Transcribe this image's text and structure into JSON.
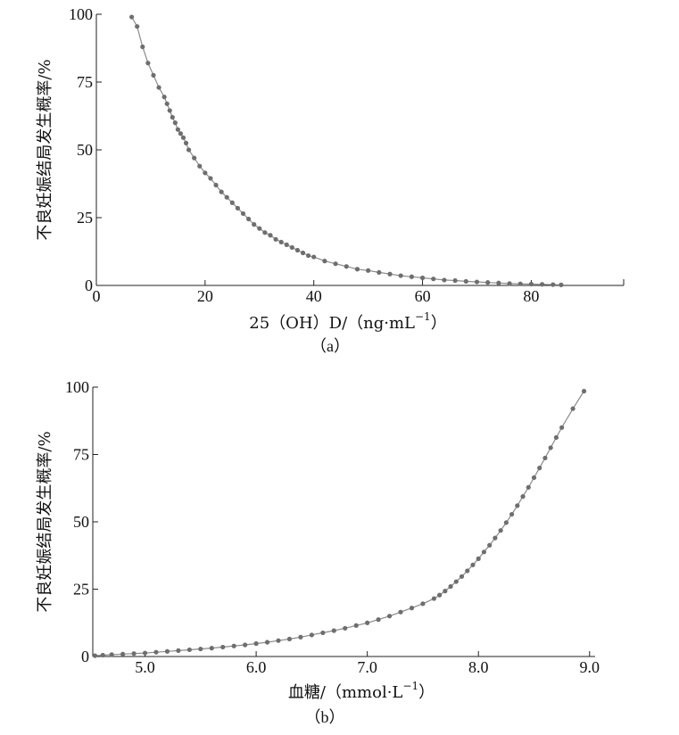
{
  "chart_data": [
    {
      "type": "scatter",
      "panel_label": "（a）",
      "xlabel": "25（OH）D/（ng·mL",
      "xlabel_exponent": "−1",
      "xlabel_close": "）",
      "ylabel": "不良妊娠结局发生概率/%",
      "xticks": [
        "0",
        "20",
        "40",
        "60",
        "80"
      ],
      "yticks": [
        "0",
        "25",
        "50",
        "75",
        "100"
      ],
      "xlim": [
        0,
        97
      ],
      "ylim": [
        0,
        100
      ],
      "grid": false,
      "marker_color": "#6e6e6e",
      "line_color": "#8a8a8a",
      "series": [
        {
          "x": [
            6.5,
            7.5,
            8.5,
            9.5,
            10.5,
            11.5,
            12.5,
            13.0,
            13.5,
            14.0,
            14.5,
            15.0,
            15.5,
            16.0,
            16.5,
            17.0,
            18.0,
            19.0,
            20.0,
            21.0,
            22.0,
            23.0,
            24.0,
            25.0,
            26.0,
            27.0,
            28.0,
            29.0,
            30.0,
            31.0,
            32.0,
            33.0,
            34.0,
            35.0,
            36.0,
            37.0,
            38.0,
            39.0,
            40.0,
            42.0,
            44.0,
            46.0,
            48.0,
            50.0,
            52.0,
            54.0,
            56.0,
            58.0,
            60.0,
            62.0,
            64.0,
            66.0,
            68.0,
            70.0,
            72.0,
            74.0,
            76.0,
            78.0,
            80.0,
            82.0,
            84.0,
            85.5
          ],
          "y": [
            99.0,
            95.5,
            88.0,
            82.0,
            77.5,
            73.0,
            69.5,
            67.0,
            64.5,
            62.0,
            60.0,
            57.5,
            56.0,
            54.5,
            52.5,
            50.0,
            47.0,
            44.0,
            41.5,
            39.5,
            37.0,
            34.5,
            32.5,
            30.5,
            28.5,
            26.5,
            24.5,
            22.5,
            21.0,
            19.5,
            18.5,
            17.0,
            16.0,
            15.0,
            14.0,
            13.0,
            12.0,
            11.0,
            10.5,
            9.0,
            8.0,
            7.0,
            6.0,
            5.5,
            4.8,
            4.2,
            3.6,
            3.2,
            2.8,
            2.4,
            2.0,
            1.8,
            1.5,
            1.3,
            1.1,
            0.9,
            0.7,
            0.6,
            0.5,
            0.4,
            0.3,
            0.2
          ]
        }
      ]
    },
    {
      "type": "scatter",
      "panel_label": "（b）",
      "xlabel": "血糖/（mmol·L",
      "xlabel_exponent": "−1",
      "xlabel_close": "）",
      "ylabel": "不良妊娠结局发生概率/%",
      "xticks": [
        "5.0",
        "6.0",
        "7.0",
        "8.0",
        "9.0"
      ],
      "yticks": [
        "0",
        "25",
        "50",
        "75",
        "100"
      ],
      "xlim": [
        4.53,
        9.05
      ],
      "ylim": [
        0,
        100
      ],
      "grid": false,
      "marker_color": "#6e6e6e",
      "line_color": "#8a8a8a",
      "series": [
        {
          "x": [
            4.55,
            4.62,
            4.7,
            4.8,
            4.9,
            5.0,
            5.1,
            5.2,
            5.3,
            5.4,
            5.5,
            5.6,
            5.7,
            5.8,
            5.9,
            6.0,
            6.1,
            6.2,
            6.3,
            6.4,
            6.5,
            6.6,
            6.7,
            6.8,
            6.9,
            7.0,
            7.1,
            7.2,
            7.3,
            7.4,
            7.5,
            7.6,
            7.65,
            7.7,
            7.75,
            7.8,
            7.85,
            7.9,
            7.95,
            8.0,
            8.05,
            8.1,
            8.15,
            8.2,
            8.25,
            8.3,
            8.35,
            8.4,
            8.45,
            8.5,
            8.55,
            8.6,
            8.65,
            8.7,
            8.75,
            8.85,
            8.95
          ],
          "y": [
            0.3,
            0.5,
            0.7,
            0.9,
            1.1,
            1.3,
            1.6,
            1.9,
            2.2,
            2.5,
            2.8,
            3.1,
            3.5,
            3.9,
            4.3,
            4.8,
            5.3,
            5.9,
            6.5,
            7.2,
            8.0,
            8.8,
            9.6,
            10.5,
            11.5,
            12.5,
            13.7,
            15.0,
            16.5,
            18.0,
            19.6,
            21.5,
            22.8,
            24.3,
            26.0,
            27.8,
            29.7,
            31.8,
            34.0,
            36.3,
            38.8,
            41.3,
            44.0,
            46.8,
            49.7,
            52.8,
            56.0,
            59.4,
            62.8,
            66.4,
            70.0,
            73.7,
            77.5,
            81.3,
            85.0,
            92.0,
            98.5
          ]
        }
      ]
    }
  ]
}
